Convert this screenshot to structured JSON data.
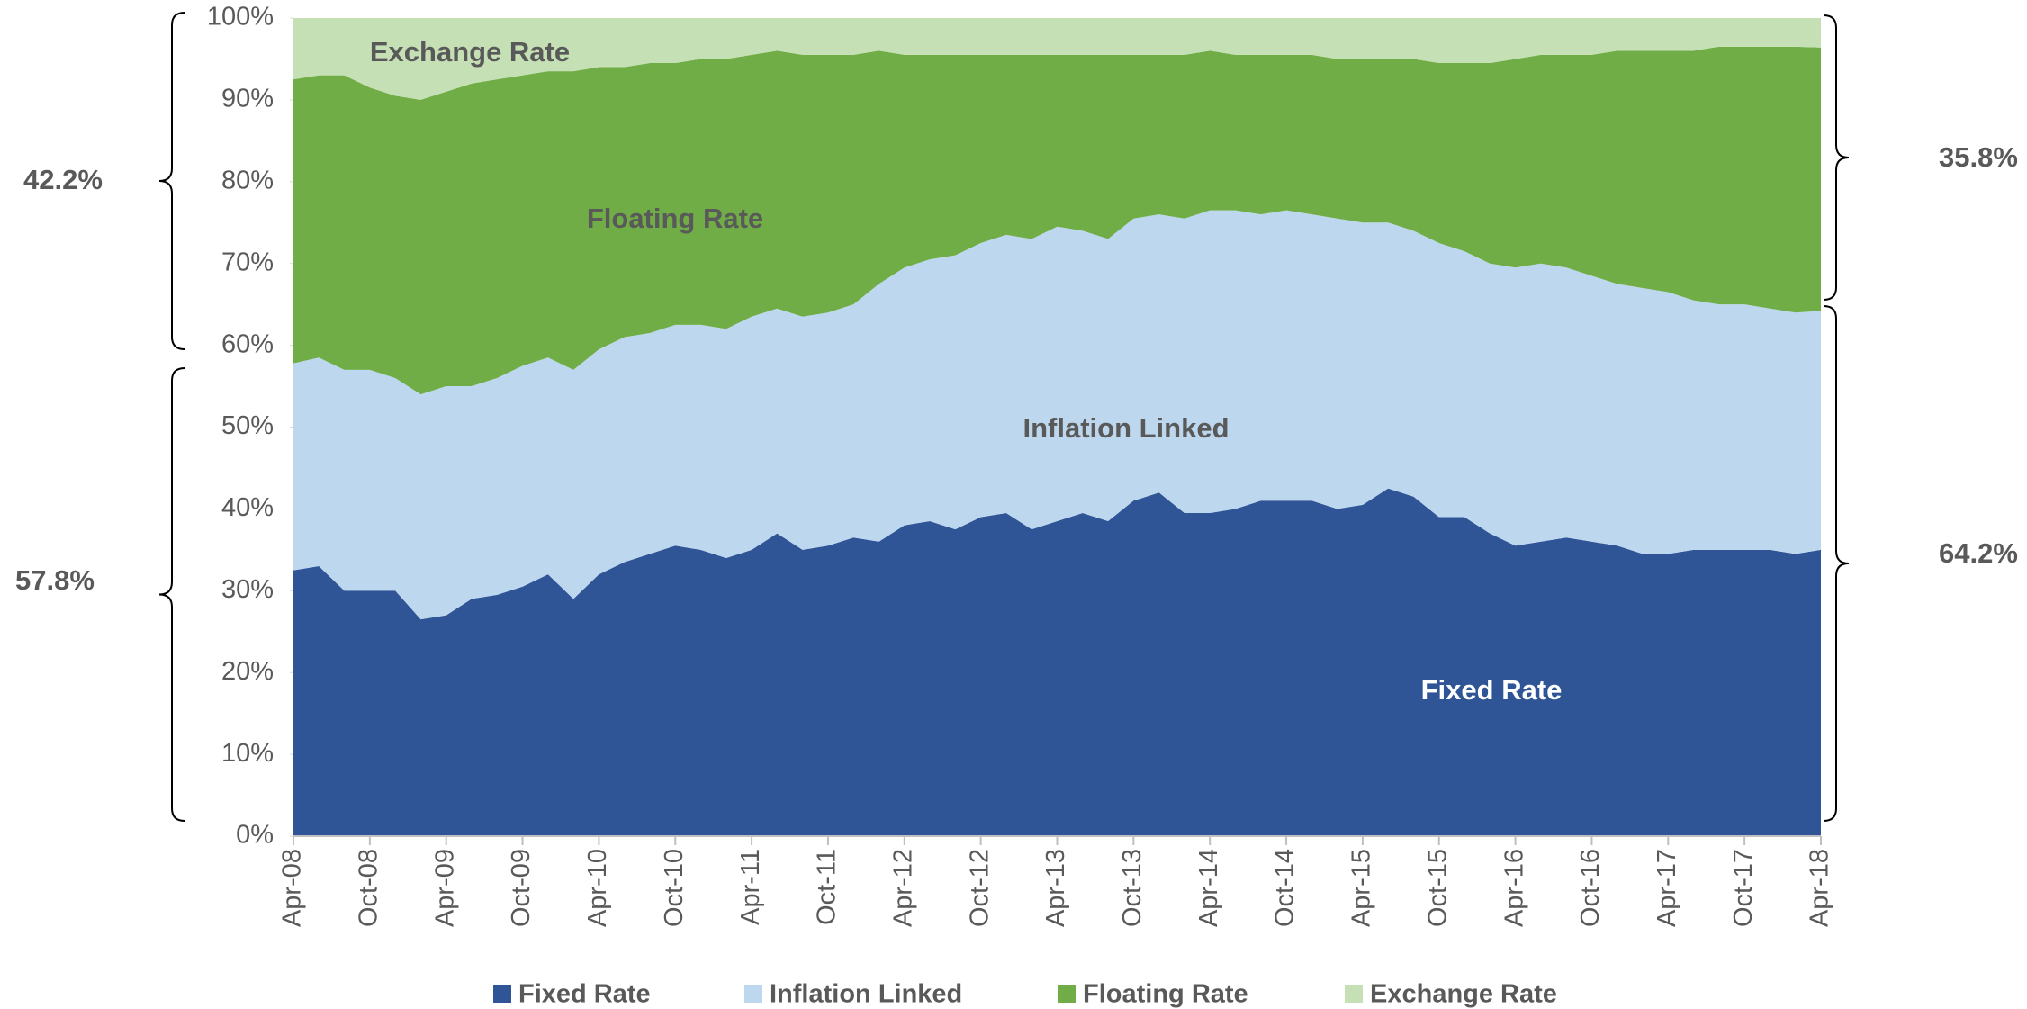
{
  "chart_data": {
    "type": "stacked_area",
    "categories": [
      "Apr-08",
      null,
      null,
      "Oct-08",
      null,
      null,
      "Apr-09",
      null,
      null,
      "Oct-09",
      null,
      null,
      "Apr-10",
      null,
      null,
      "Oct-10",
      null,
      null,
      "Apr-11",
      null,
      null,
      "Oct-11",
      null,
      null,
      "Apr-12",
      null,
      null,
      "Oct-12",
      null,
      null,
      "Apr-13",
      null,
      null,
      "Oct-13",
      null,
      null,
      "Apr-14",
      null,
      null,
      "Oct-14",
      null,
      null,
      "Apr-15",
      null,
      null,
      "Oct-15",
      null,
      null,
      "Apr-16",
      null,
      null,
      "Oct-16",
      null,
      null,
      "Apr-17",
      null,
      null,
      "Oct-17",
      null,
      null,
      "Apr-18"
    ],
    "series": [
      {
        "name": "Fixed Rate",
        "color": "#2f5597",
        "values": [
          32.5,
          33,
          30,
          30,
          30,
          26.5,
          27,
          29,
          29.5,
          30.5,
          32,
          29,
          32,
          33.5,
          34.5,
          35.5,
          35,
          34,
          35,
          37,
          35,
          35.5,
          36.5,
          36,
          38,
          38.5,
          37.5,
          39,
          39.5,
          37.5,
          38.5,
          39.5,
          38.5,
          41,
          42,
          39.5,
          39.5,
          40,
          41,
          41,
          41,
          40,
          40.5,
          42.5,
          41.5,
          39,
          39,
          37,
          35.5,
          36,
          36.5,
          36,
          35.5,
          34.5,
          34.5,
          35,
          35,
          35,
          35,
          34.5,
          35
        ]
      },
      {
        "name": "Inflation Linked",
        "color": "#bdd7ee",
        "values": [
          25.3,
          25.5,
          27,
          27,
          26,
          27.5,
          28,
          26,
          26.5,
          27,
          26.5,
          28,
          27.5,
          27.5,
          27,
          27,
          27.5,
          28,
          28.5,
          27.5,
          28.5,
          28.5,
          28.5,
          31.5,
          31.5,
          32,
          33.5,
          33.5,
          34,
          35.5,
          36,
          34.5,
          34.5,
          34.5,
          34,
          36,
          37,
          36.5,
          35,
          35.5,
          35,
          35.5,
          34.5,
          32.5,
          32.5,
          33.5,
          32.5,
          33,
          34,
          34,
          33,
          32.5,
          32,
          32.5,
          32,
          30.5,
          30,
          30,
          29.5,
          29.5,
          29.2
        ]
      },
      {
        "name": "Floating Rate",
        "color": "#70ad47",
        "values": [
          34.7,
          34.5,
          36,
          34.5,
          34.5,
          36,
          36,
          37,
          36.5,
          35.5,
          35,
          36.5,
          34.5,
          33,
          33,
          32,
          32.5,
          33,
          32,
          31.5,
          32,
          31.5,
          30.5,
          28.5,
          26,
          25,
          24.5,
          23,
          22,
          22.5,
          21,
          21.5,
          22.5,
          20,
          19.5,
          20,
          19.5,
          19,
          19.5,
          19,
          19.5,
          19.5,
          20,
          20,
          21,
          22,
          23,
          24.5,
          25.5,
          25.5,
          26,
          27,
          28.5,
          29,
          29.5,
          30.5,
          31.5,
          31.5,
          32,
          32.5,
          32.2
        ]
      },
      {
        "name": "Exchange Rate",
        "color": "#c5e0b4",
        "values": [
          7.5,
          7,
          7,
          8.5,
          9.5,
          10,
          9,
          8,
          7.5,
          7,
          6.5,
          6.5,
          6,
          6,
          5.5,
          5.5,
          5,
          5,
          4.5,
          4,
          4.5,
          4.5,
          4.5,
          4,
          4.5,
          4.5,
          4.5,
          4.5,
          4.5,
          4.5,
          4.5,
          4.5,
          4.5,
          4.5,
          4.5,
          4.5,
          4,
          4.5,
          4.5,
          4.5,
          4.5,
          5,
          5,
          5,
          5,
          5.5,
          5.5,
          5.5,
          5,
          4.5,
          4.5,
          4.5,
          4,
          4,
          4,
          4,
          3.5,
          3.5,
          3.5,
          3.5,
          3.6
        ]
      }
    ],
    "ylim": [
      0,
      100
    ],
    "yticks": [
      {
        "value": 0,
        "label": "0%"
      },
      {
        "value": 10,
        "label": "10%"
      },
      {
        "value": 20,
        "label": "20%"
      },
      {
        "value": 30,
        "label": "30%"
      },
      {
        "value": 40,
        "label": "40%"
      },
      {
        "value": 50,
        "label": "50%"
      },
      {
        "value": 60,
        "label": "60%"
      },
      {
        "value": 70,
        "label": "70%"
      },
      {
        "value": 80,
        "label": "80%"
      },
      {
        "value": 90,
        "label": "90%"
      },
      {
        "value": 100,
        "label": "100%"
      }
    ],
    "annotations": [
      "42.2%",
      "57.8%",
      "35.8%",
      "64.2%"
    ],
    "grid": false,
    "legend": "bottom"
  }
}
